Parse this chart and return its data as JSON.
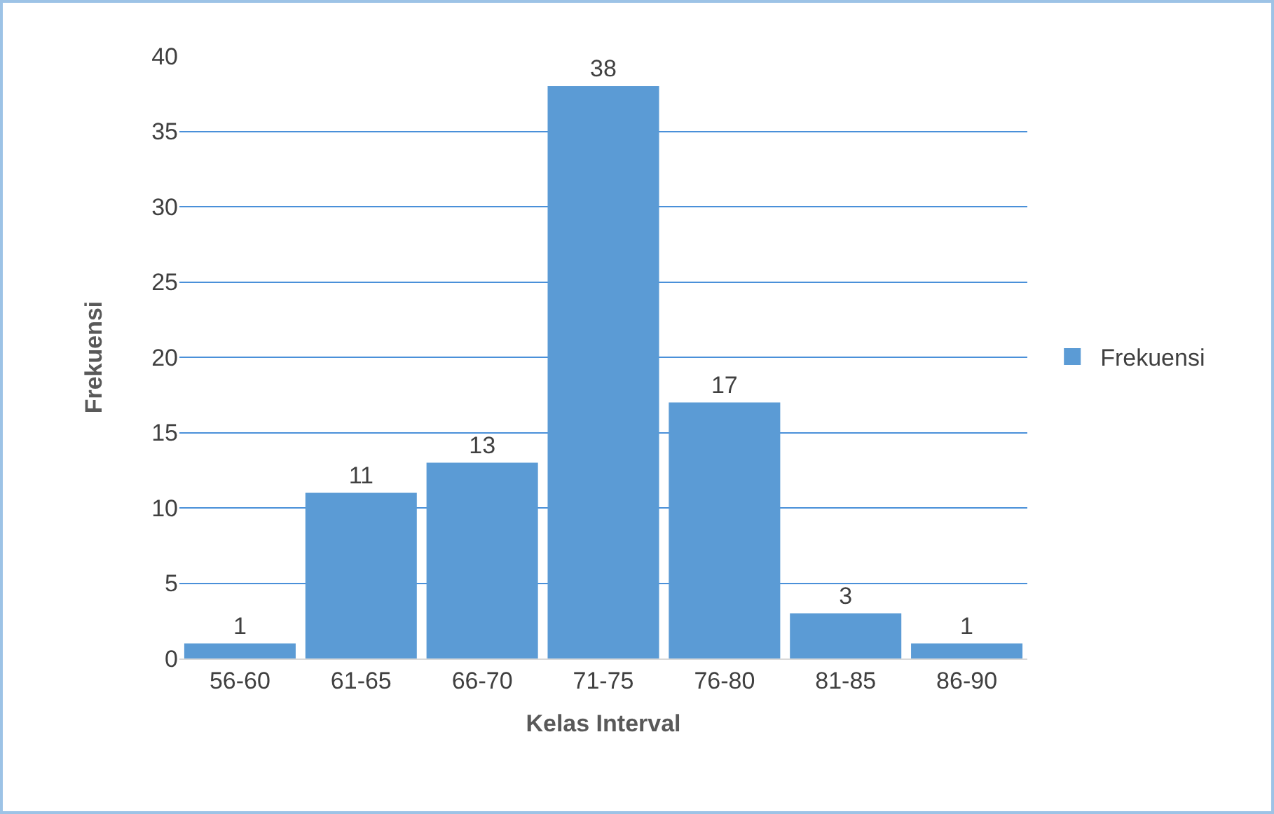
{
  "chart_data": {
    "type": "bar",
    "xlabel": "Kelas Interval",
    "ylabel": "Frekuensi",
    "categories": [
      "56-60",
      "61-65",
      "66-70",
      "71-75",
      "76-80",
      "81-85",
      "86-90"
    ],
    "series": [
      {
        "name": "Frekuensi",
        "color": "#5b9bd5",
        "values": [
          1,
          11,
          13,
          38,
          17,
          3,
          1
        ]
      }
    ],
    "ylim": [
      0,
      40
    ],
    "yticks": [
      0,
      5,
      10,
      15,
      20,
      25,
      30,
      35,
      40
    ],
    "grid": "y",
    "legend": "right",
    "data_labels": true
  }
}
